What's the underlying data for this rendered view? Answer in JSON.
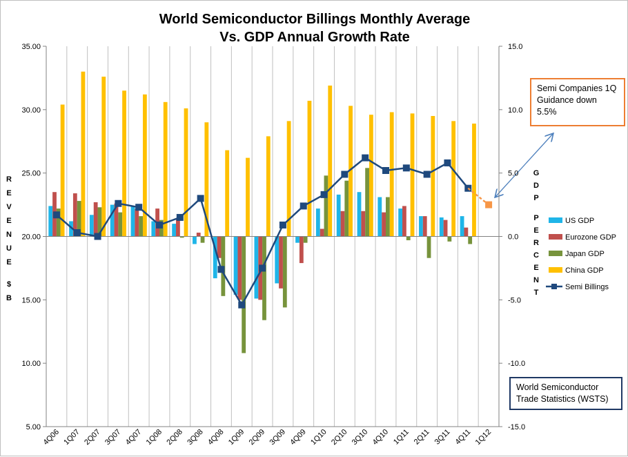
{
  "chart_data": {
    "type": "bar",
    "title_lines": [
      "World Semiconductor Billings Monthly Average",
      "Vs. GDP Annual Growth Rate"
    ],
    "left_axis_label": "REVENUE $B",
    "right_axis_label": "GDP PERCENT",
    "left_ylim": [
      5,
      35
    ],
    "right_ylim": [
      -15,
      15
    ],
    "left_ticks": [
      "35.00",
      "30.00",
      "25.00",
      "20.00",
      "15.00",
      "10.00",
      "5.00"
    ],
    "right_ticks": [
      "15.0",
      "10.0",
      "5.0",
      "0.0",
      "-5.0",
      "-10.0",
      "-15.0"
    ],
    "grid": "vertical",
    "legend_position": "right",
    "categories": [
      "4Q06",
      "1Q07",
      "2Q07",
      "3Q07",
      "4Q07",
      "1Q08",
      "2Q08",
      "3Q08",
      "4Q08",
      "1Q09",
      "2Q09",
      "3Q09",
      "4Q09",
      "1Q10",
      "2Q10",
      "3Q10",
      "4Q10",
      "1Q11",
      "2Q11",
      "3Q11",
      "4Q11",
      "1Q12"
    ],
    "series": [
      {
        "name": "US GDP",
        "axis": "right",
        "color": "#1fb5e8",
        "values": [
          2.4,
          1.2,
          1.7,
          2.5,
          2.4,
          1.2,
          1.0,
          -0.6,
          -3.3,
          -4.6,
          -4.9,
          -3.7,
          -0.5,
          2.2,
          3.3,
          3.5,
          3.1,
          2.2,
          1.6,
          1.5,
          1.6,
          null
        ]
      },
      {
        "name": "Eurozone GDP",
        "axis": "right",
        "color": "#c0504d",
        "values": [
          3.5,
          3.4,
          2.7,
          2.6,
          2.2,
          2.2,
          1.4,
          0.3,
          -1.7,
          -5.0,
          -5.0,
          -4.1,
          -2.1,
          0.6,
          2.0,
          2.0,
          1.9,
          2.4,
          1.6,
          1.3,
          0.7,
          null
        ]
      },
      {
        "name": "Japan GDP",
        "axis": "right",
        "color": "#77933c",
        "values": [
          2.2,
          2.8,
          2.3,
          1.9,
          1.6,
          1.3,
          -0.1,
          -0.5,
          -4.7,
          -9.2,
          -6.6,
          -5.6,
          -0.5,
          4.8,
          4.4,
          5.4,
          3.1,
          -0.3,
          -1.7,
          -0.4,
          -0.6,
          null
        ]
      },
      {
        "name": "China GDP",
        "axis": "right",
        "color": "#ffc000",
        "values": [
          10.4,
          13.0,
          12.6,
          11.5,
          11.2,
          10.6,
          10.1,
          9.0,
          6.8,
          6.2,
          7.9,
          9.1,
          10.7,
          11.9,
          10.3,
          9.6,
          9.8,
          9.7,
          9.5,
          9.1,
          8.9,
          null
        ]
      },
      {
        "name": "Semi Billings",
        "axis": "left",
        "type": "line",
        "color": "#1f497d",
        "values": [
          21.7,
          20.3,
          20.0,
          22.6,
          22.3,
          20.9,
          21.5,
          23.0,
          17.4,
          14.6,
          17.5,
          20.9,
          22.4,
          23.3,
          24.9,
          26.2,
          25.2,
          25.4,
          24.9,
          25.8,
          23.8,
          null
        ]
      }
    ],
    "projection": {
      "category": "1Q12",
      "value": 22.5,
      "color": "#f79646"
    }
  },
  "note": {
    "lines": [
      "Semi Companies 1Q",
      "Guidance down",
      "5.5%"
    ]
  },
  "source": {
    "lines": [
      "World Semiconductor",
      "Trade Statistics (WSTS)"
    ]
  },
  "colors": {
    "arrow": "#4f81bd",
    "grid": "#bfbfbf"
  }
}
